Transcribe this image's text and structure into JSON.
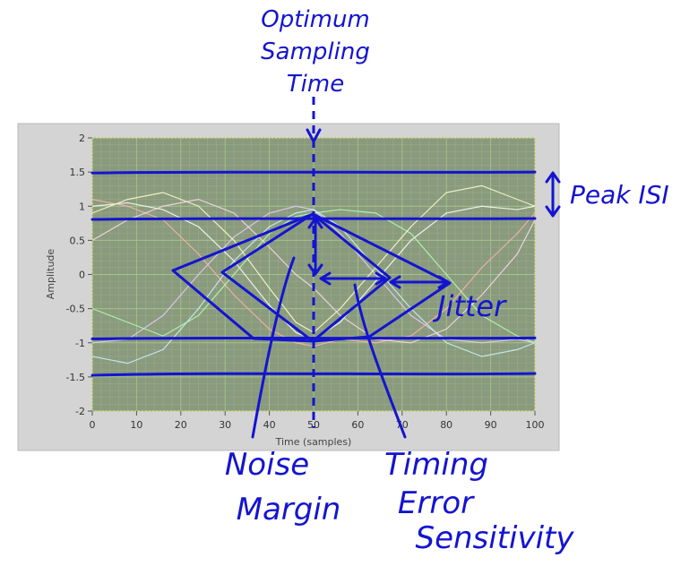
{
  "chart_data": {
    "type": "line",
    "xlabel": "Time (samples)",
    "ylabel": "Amplitude",
    "xlim": [
      0,
      100
    ],
    "ylim": [
      -2,
      2
    ],
    "x_ticks": [
      0,
      10,
      20,
      30,
      40,
      50,
      60,
      70,
      80,
      90,
      100
    ],
    "y_ticks": [
      2,
      1.5,
      1,
      0.5,
      0,
      -0.5,
      -1,
      -1.5,
      -2
    ],
    "grid": true,
    "series_note": "",
    "series": [
      {
        "color": "#ffffff",
        "x": [
          0,
          8,
          16,
          24,
          32,
          40,
          46,
          50,
          56,
          64,
          72,
          80,
          88,
          96,
          100
        ],
        "y": [
          1.0,
          1.05,
          0.95,
          0.7,
          0.2,
          -0.45,
          -0.85,
          -0.95,
          -0.7,
          -0.1,
          0.5,
          0.9,
          1.0,
          0.95,
          1.0
        ]
      },
      {
        "color": "#e6ccff",
        "x": [
          0,
          8,
          16,
          24,
          32,
          40,
          46,
          50,
          56,
          64,
          72,
          80,
          88,
          96,
          100
        ],
        "y": [
          -1.0,
          -0.95,
          -0.6,
          0.0,
          0.55,
          0.9,
          1.0,
          0.95,
          0.6,
          0.0,
          -0.6,
          -0.95,
          -1.0,
          -0.95,
          -1.0
        ]
      },
      {
        "color": "#ffb3b3",
        "x": [
          0,
          8,
          16,
          24,
          32,
          40,
          46,
          50,
          56,
          64,
          72,
          80,
          88,
          96,
          100
        ],
        "y": [
          1.1,
          1.0,
          0.8,
          0.3,
          -0.3,
          -0.8,
          -1.0,
          -1.05,
          -0.95,
          -1.0,
          -0.9,
          -0.5,
          0.1,
          0.6,
          0.9
        ]
      },
      {
        "color": "#b3ffb3",
        "x": [
          0,
          8,
          16,
          24,
          32,
          40,
          46,
          50,
          56,
          64,
          72,
          80,
          88,
          96,
          100
        ],
        "y": [
          -0.5,
          -0.7,
          -0.9,
          -0.6,
          0.0,
          0.6,
          0.85,
          0.9,
          0.95,
          0.9,
          0.6,
          0.0,
          -0.6,
          -0.9,
          -1.0
        ]
      },
      {
        "color": "#ffffcc",
        "x": [
          0,
          8,
          16,
          24,
          32,
          40,
          46,
          50,
          56,
          64,
          72,
          80,
          88,
          96,
          100
        ],
        "y": [
          0.9,
          1.1,
          1.2,
          1.0,
          0.5,
          -0.2,
          -0.7,
          -0.85,
          -0.5,
          0.1,
          0.7,
          1.2,
          1.3,
          1.1,
          1.0
        ]
      },
      {
        "color": "#ccf2ff",
        "x": [
          0,
          8,
          16,
          24,
          32,
          40,
          46,
          50,
          56,
          64,
          72,
          80,
          88,
          96,
          100
        ],
        "y": [
          -1.2,
          -1.3,
          -1.1,
          -0.5,
          0.2,
          0.7,
          0.9,
          0.95,
          0.7,
          0.1,
          -0.5,
          -1.0,
          -1.2,
          -1.1,
          -1.0
        ]
      },
      {
        "color": "#ffd9f0",
        "x": [
          0,
          8,
          16,
          24,
          32,
          40,
          46,
          50,
          56,
          64,
          72,
          80,
          88,
          96,
          100
        ],
        "y": [
          0.5,
          0.8,
          1.0,
          1.1,
          0.9,
          0.4,
          0.0,
          -0.2,
          -0.6,
          -0.95,
          -1.0,
          -0.8,
          -0.3,
          0.3,
          0.8
        ]
      }
    ],
    "annotations": {
      "optimum": [
        "Optimum",
        "Sampling",
        "Time"
      ],
      "peak_isi": "Peak ISI",
      "jitter": "Jitter",
      "noise": [
        "Noise",
        "Margin"
      ],
      "timing": [
        "Timing",
        "Error",
        "Sensitivity"
      ]
    },
    "annotation_lines": {
      "upper_envelope_y": 1.5,
      "upper_eye_y": 0.82,
      "lower_eye_y": -0.93,
      "lower_envelope_y": -1.45,
      "sampling_time_x": 50
    }
  },
  "colors": {
    "plot_bg": "#8a9a7e",
    "grid": "#a6c98a",
    "frame": "#d4d4d4",
    "ink": "#1414d0"
  }
}
